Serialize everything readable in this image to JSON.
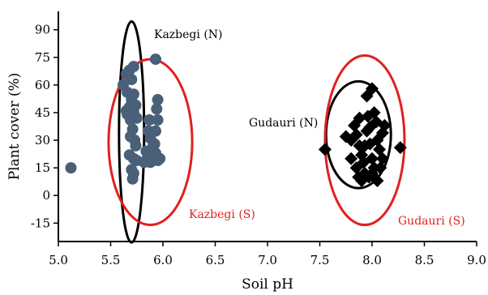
{
  "chart_data": {
    "type": "scatter",
    "xlabel": "Soil pH",
    "ylabel": "Plant cover (%)",
    "xlim": [
      5.0,
      9.0
    ],
    "ylim": [
      -25,
      100
    ],
    "xticks": [
      "5.0",
      "5.5",
      "6.0",
      "6.5",
      "7.0",
      "7.5",
      "8.0",
      "8.5",
      "9.0"
    ],
    "yticks": [
      "-15",
      "0",
      "15",
      "30",
      "45",
      "60",
      "75",
      "90"
    ],
    "grid": false,
    "colors": {
      "kazbegi_points": "#4a5f78",
      "gudauri_points": "#000000",
      "north_ellipse": "#000000",
      "south_ellipse": "#e02020"
    },
    "series": [
      {
        "marker": "circle",
        "points": [
          [
            5.12,
            15
          ],
          [
            5.62,
            60
          ],
          [
            5.65,
            66
          ],
          [
            5.68,
            68
          ],
          [
            5.72,
            70
          ],
          [
            5.7,
            63
          ],
          [
            5.66,
            56
          ],
          [
            5.72,
            55
          ],
          [
            5.7,
            52
          ],
          [
            5.68,
            48
          ],
          [
            5.74,
            49
          ],
          [
            5.65,
            46
          ],
          [
            5.72,
            45
          ],
          [
            5.69,
            41
          ],
          [
            5.75,
            42
          ],
          [
            5.66,
            44
          ],
          [
            5.71,
            36
          ],
          [
            5.69,
            32
          ],
          [
            5.73,
            30
          ],
          [
            5.74,
            27
          ],
          [
            5.68,
            22
          ],
          [
            5.72,
            20
          ],
          [
            5.75,
            19
          ],
          [
            5.7,
            14
          ],
          [
            5.72,
            12
          ],
          [
            5.71,
            9
          ],
          [
            5.93,
            74
          ],
          [
            5.95,
            52
          ],
          [
            5.94,
            47
          ],
          [
            5.87,
            41
          ],
          [
            5.95,
            41
          ],
          [
            5.86,
            35
          ],
          [
            5.93,
            35
          ],
          [
            5.88,
            31
          ],
          [
            5.92,
            28
          ],
          [
            5.9,
            26
          ],
          [
            5.84,
            24
          ],
          [
            5.93,
            23
          ],
          [
            5.85,
            20
          ],
          [
            5.9,
            21
          ],
          [
            5.95,
            19
          ],
          [
            5.88,
            18
          ],
          [
            5.97,
            20
          ],
          [
            5.82,
            18
          ]
        ]
      },
      {
        "marker": "diamond",
        "points": [
          [
            7.55,
            25
          ],
          [
            7.8,
            30
          ],
          [
            7.85,
            33
          ],
          [
            7.83,
            38
          ],
          [
            7.88,
            27
          ],
          [
            7.9,
            22
          ],
          [
            7.92,
            18
          ],
          [
            7.95,
            35
          ],
          [
            7.96,
            43
          ],
          [
            7.98,
            28
          ],
          [
            8.0,
            20
          ],
          [
            8.02,
            15
          ],
          [
            7.97,
            10
          ],
          [
            7.93,
            12
          ],
          [
            7.9,
            8
          ],
          [
            8.04,
            40
          ],
          [
            8.05,
            30
          ],
          [
            8.05,
            8
          ],
          [
            8.07,
            25
          ],
          [
            8.1,
            34
          ],
          [
            7.85,
            15
          ],
          [
            7.88,
            42
          ],
          [
            7.95,
            54
          ],
          [
            8.0,
            58
          ],
          [
            8.02,
            45
          ],
          [
            8.08,
            15
          ],
          [
            8.1,
            20
          ],
          [
            8.27,
            26
          ],
          [
            7.8,
            20
          ],
          [
            7.98,
            37
          ],
          [
            8.12,
            38
          ],
          [
            7.75,
            32
          ],
          [
            7.87,
            10
          ],
          [
            8.0,
            12
          ],
          [
            7.93,
            27
          ]
        ]
      }
    ],
    "ellipses": [
      {
        "label": "Kazbegi (N)",
        "color": "north",
        "cx": 5.7,
        "cy": 34.5,
        "rx": 0.12,
        "ry": 60
      },
      {
        "label": "Kazbegi (S)",
        "color": "south",
        "cx": 5.88,
        "cy": 29,
        "rx": 0.4,
        "ry": 45
      },
      {
        "label": "Gudauri (N)",
        "color": "north",
        "cx": 7.87,
        "cy": 33,
        "rx": 0.31,
        "ry": 29
      },
      {
        "label": "Gudauri (S)",
        "color": "south",
        "cx": 7.93,
        "cy": 30,
        "rx": 0.38,
        "ry": 46
      }
    ],
    "annotations": [
      {
        "text": "Kazbegi (N)",
        "color": "north"
      },
      {
        "text": "Kazbegi (S)",
        "color": "south"
      },
      {
        "text": "Gudauri (N)",
        "color": "north"
      },
      {
        "text": "Gudauri (S)",
        "color": "south"
      }
    ]
  }
}
